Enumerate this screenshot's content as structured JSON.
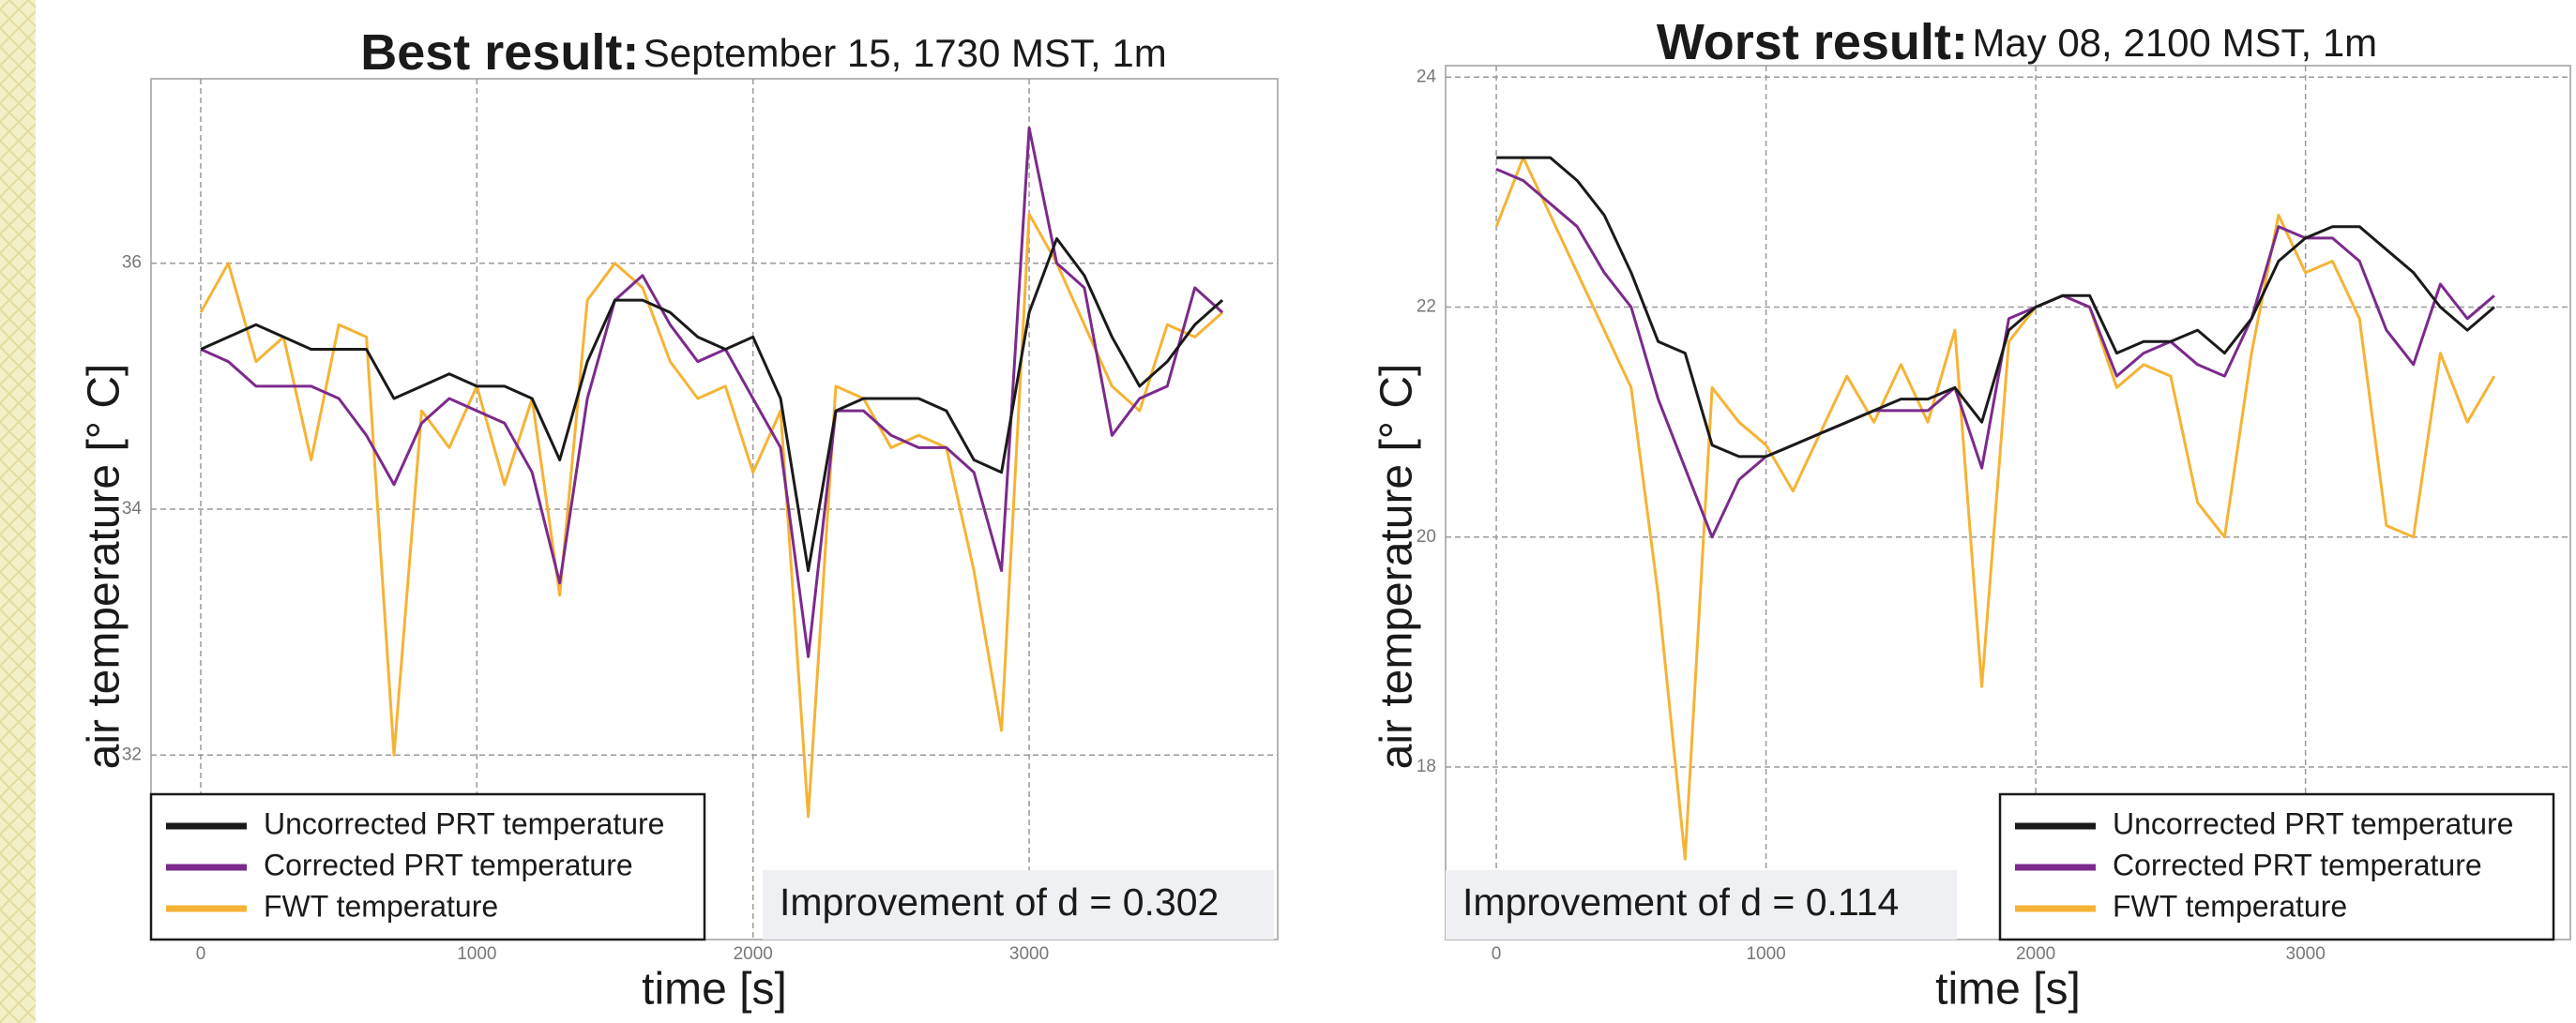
{
  "chart_data": [
    {
      "type": "line",
      "title": "Best result:",
      "subtitle": "September 15, 1730 MST, 1m",
      "x_label": "time [s]",
      "y_label": "air temperature [° C]",
      "annotation": "Improvement of d = 0.302",
      "legend": "lower left",
      "grid": true,
      "xlim": [
        -180,
        3900
      ],
      "ylim": [
        30.5,
        37.5
      ],
      "xticks": [
        0,
        1000,
        2000,
        3000
      ],
      "yticks": [
        32,
        34,
        36
      ],
      "x": [
        0,
        100,
        200,
        300,
        400,
        500,
        600,
        700,
        800,
        900,
        1000,
        1100,
        1200,
        1300,
        1400,
        1500,
        1600,
        1700,
        1800,
        1900,
        2000,
        2100,
        2200,
        2300,
        2400,
        2500,
        2600,
        2700,
        2800,
        2900,
        3000,
        3100,
        3200,
        3300,
        3400,
        3500,
        3600,
        3700
      ],
      "series": [
        {
          "name": "Uncorrected PRT temperature",
          "color": "#1a1a1a",
          "values": [
            35.3,
            35.4,
            35.5,
            35.4,
            35.3,
            35.3,
            35.3,
            34.9,
            35.0,
            35.1,
            35.0,
            35.0,
            34.9,
            34.4,
            35.2,
            35.7,
            35.7,
            35.6,
            35.4,
            35.3,
            35.4,
            34.9,
            33.5,
            34.8,
            34.9,
            34.9,
            34.9,
            34.8,
            34.4,
            34.3,
            35.6,
            36.2,
            35.9,
            35.4,
            35.0,
            35.2,
            35.5,
            35.7
          ]
        },
        {
          "name": "Corrected PRT temperature",
          "color": "#7b2a8c",
          "values": [
            35.3,
            35.2,
            35.0,
            35.0,
            35.0,
            34.9,
            34.6,
            34.2,
            34.7,
            34.9,
            34.8,
            34.7,
            34.3,
            33.4,
            34.9,
            35.7,
            35.9,
            35.5,
            35.2,
            35.3,
            34.9,
            34.5,
            32.8,
            34.8,
            34.8,
            34.6,
            34.5,
            34.5,
            34.3,
            33.5,
            37.1,
            36.0,
            35.8,
            34.6,
            34.9,
            35.0,
            35.8,
            35.6
          ]
        },
        {
          "name": "FWT temperature",
          "color": "#f5b335",
          "values": [
            35.6,
            36.0,
            35.2,
            35.4,
            34.4,
            35.5,
            35.4,
            32.0,
            34.8,
            34.5,
            35.0,
            34.2,
            34.9,
            33.3,
            35.7,
            36.0,
            35.8,
            35.2,
            34.9,
            35.0,
            34.3,
            34.8,
            31.5,
            35.0,
            34.9,
            34.5,
            34.6,
            34.5,
            33.5,
            32.2,
            36.4,
            36.0,
            35.5,
            35.0,
            34.8,
            35.5,
            35.4,
            35.6
          ]
        }
      ]
    },
    {
      "type": "line",
      "title": "Worst result:",
      "subtitle": "May 08, 2100 MST, 1m",
      "x_label": "time [s]",
      "y_label": "air temperature [° C]",
      "annotation": "Improvement of d = 0.114",
      "legend": "lower right",
      "grid": true,
      "xlim": [
        -188,
        3982
      ],
      "ylim": [
        16.5,
        24.1
      ],
      "xticks": [
        0,
        1000,
        2000,
        3000
      ],
      "yticks": [
        18,
        20,
        22,
        24
      ],
      "x": [
        0,
        100,
        200,
        300,
        400,
        500,
        600,
        700,
        800,
        900,
        1000,
        1100,
        1200,
        1300,
        1400,
        1500,
        1600,
        1700,
        1800,
        1900,
        2000,
        2100,
        2200,
        2300,
        2400,
        2500,
        2600,
        2700,
        2800,
        2900,
        3000,
        3100,
        3200,
        3300,
        3400,
        3500,
        3600,
        3700
      ],
      "series": [
        {
          "name": "Uncorrected PRT temperature",
          "color": "#1a1a1a",
          "values": [
            23.3,
            23.3,
            23.3,
            23.1,
            22.8,
            22.3,
            21.7,
            21.6,
            20.8,
            20.7,
            20.7,
            20.8,
            20.9,
            21.0,
            21.1,
            21.2,
            21.2,
            21.3,
            21.0,
            21.8,
            22.0,
            22.1,
            22.1,
            21.6,
            21.7,
            21.7,
            21.8,
            21.6,
            21.9,
            22.4,
            22.6,
            22.7,
            22.7,
            22.5,
            22.3,
            22.0,
            21.8,
            22.0
          ]
        },
        {
          "name": "Corrected PRT temperature",
          "color": "#7b2a8c",
          "values": [
            23.2,
            23.1,
            22.9,
            22.7,
            22.3,
            22.0,
            21.2,
            20.6,
            20.0,
            20.5,
            20.7,
            20.8,
            20.9,
            21.0,
            21.1,
            21.1,
            21.1,
            21.3,
            20.6,
            21.9,
            22.0,
            22.1,
            22.0,
            21.4,
            21.6,
            21.7,
            21.5,
            21.4,
            21.9,
            22.7,
            22.6,
            22.6,
            22.4,
            21.8,
            21.5,
            22.2,
            21.9,
            22.1
          ]
        },
        {
          "name": "FWT temperature",
          "color": "#f5b335",
          "values": [
            22.7,
            23.3,
            22.8,
            22.3,
            21.8,
            21.3,
            19.5,
            17.2,
            21.3,
            21.0,
            20.8,
            20.4,
            20.9,
            21.4,
            21.0,
            21.5,
            21.0,
            21.8,
            18.7,
            21.7,
            22.0,
            22.1,
            22.0,
            21.3,
            21.5,
            21.4,
            20.3,
            20.0,
            21.6,
            22.8,
            22.3,
            22.4,
            21.9,
            20.1,
            20.0,
            21.6,
            21.0,
            21.4
          ]
        }
      ]
    }
  ]
}
